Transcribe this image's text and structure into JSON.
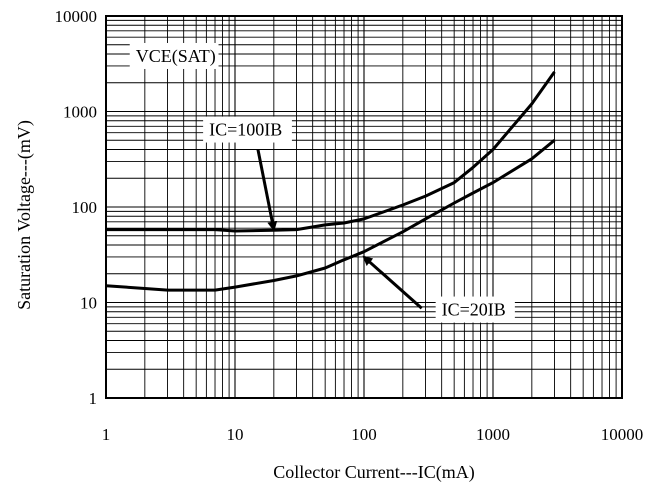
{
  "chart_data": {
    "type": "line",
    "title": "",
    "xlabel": "Collector Current---IC(mA)",
    "ylabel": "Saturation Voltage---(mV)",
    "x_scale": "log",
    "y_scale": "log",
    "xlim": [
      1,
      10000
    ],
    "ylim": [
      1,
      10000
    ],
    "grid": true,
    "x_ticks": [
      {
        "value": 1,
        "label": "1"
      },
      {
        "value": 10,
        "label": "10"
      },
      {
        "value": 100,
        "label": "100"
      },
      {
        "value": 1000,
        "label": "1000"
      },
      {
        "value": 10000,
        "label": "10000"
      }
    ],
    "y_ticks": [
      {
        "value": 1,
        "label": "1"
      },
      {
        "value": 10,
        "label": "10"
      },
      {
        "value": 100,
        "label": "100"
      },
      {
        "value": 1000,
        "label": "1000"
      },
      {
        "value": 10000,
        "label": "10000"
      }
    ],
    "series": [
      {
        "name": "IC=100IB",
        "x": [
          1,
          2,
          5,
          7,
          10,
          20,
          30,
          50,
          70,
          100,
          200,
          300,
          500,
          700,
          1000,
          2000,
          3000
        ],
        "y": [
          58,
          58,
          58,
          58,
          56,
          57,
          58,
          65,
          68,
          75,
          105,
          130,
          180,
          260,
          400,
          1200,
          2600
        ]
      },
      {
        "name": "IC=20IB",
        "x": [
          1,
          2,
          3,
          5,
          7,
          10,
          20,
          30,
          50,
          70,
          100,
          200,
          300,
          500,
          700,
          1000,
          2000,
          3000
        ],
        "y": [
          15,
          14,
          13.5,
          13.5,
          13.5,
          14.5,
          17,
          19,
          23,
          28,
          34,
          55,
          75,
          110,
          140,
          180,
          320,
          500
        ]
      }
    ],
    "annotations": [
      {
        "text": "VCE(SAT)",
        "x": 1.7,
        "y": 3300
      },
      {
        "text": "IC=100IB",
        "x": 6.3,
        "y": 560,
        "arrow_to": [
          20,
          58
        ]
      },
      {
        "text": "IC=20IB",
        "x": 400,
        "y": 7.3,
        "arrow_to": [
          100,
          30
        ],
        "arrow_from": [
          280,
          8.7
        ]
      }
    ]
  }
}
